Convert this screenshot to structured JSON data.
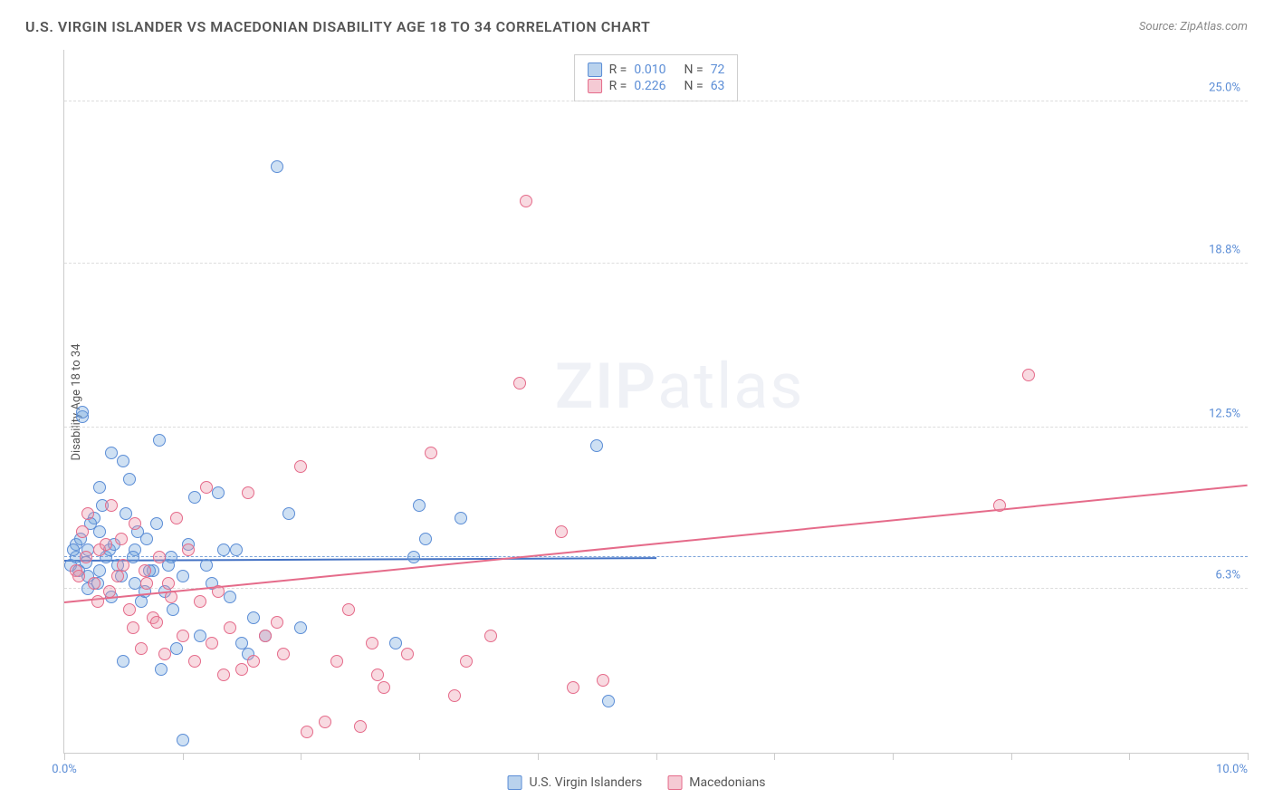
{
  "header": {
    "title": "U.S. VIRGIN ISLANDER VS MACEDONIAN DISABILITY AGE 18 TO 34 CORRELATION CHART",
    "source": "Source: ZipAtlas.com"
  },
  "chart": {
    "type": "scatter",
    "y_axis_label": "Disability Age 18 to 34",
    "background_color": "#ffffff",
    "grid_color": "#dddddd",
    "grid_dash": true,
    "xlim": [
      0.0,
      10.0
    ],
    "ylim": [
      0.0,
      27.0
    ],
    "x_ticks": [
      {
        "pos": 0.0,
        "label": "0.0%"
      },
      {
        "pos": 1.0,
        "label": ""
      },
      {
        "pos": 2.0,
        "label": ""
      },
      {
        "pos": 3.0,
        "label": ""
      },
      {
        "pos": 4.0,
        "label": ""
      },
      {
        "pos": 5.0,
        "label": ""
      },
      {
        "pos": 6.0,
        "label": ""
      },
      {
        "pos": 7.0,
        "label": ""
      },
      {
        "pos": 8.0,
        "label": ""
      },
      {
        "pos": 9.0,
        "label": ""
      },
      {
        "pos": 10.0,
        "label": "10.0%"
      }
    ],
    "y_ticks": [
      {
        "pos": 6.3,
        "label": "6.3%"
      },
      {
        "pos": 12.5,
        "label": "12.5%"
      },
      {
        "pos": 18.8,
        "label": "18.8%"
      },
      {
        "pos": 25.0,
        "label": "25.0%"
      }
    ],
    "reference_line_y": 7.5,
    "reference_line_color": "#7ba3d9",
    "series": [
      {
        "name": "U.S. Virgin Islanders",
        "color_fill": "rgba(115,165,220,0.35)",
        "color_stroke": "#5b8dd6",
        "trend_color": "#4472c4",
        "trend_x_range": [
          0.0,
          5.0
        ],
        "trend_y_range": [
          7.4,
          7.5
        ],
        "r_value": "0.010",
        "n_value": "72",
        "points": [
          [
            0.05,
            7.2
          ],
          [
            0.1,
            7.5
          ],
          [
            0.1,
            8.0
          ],
          [
            0.15,
            12.9
          ],
          [
            0.15,
            13.1
          ],
          [
            0.2,
            6.8
          ],
          [
            0.2,
            6.3
          ],
          [
            0.2,
            7.8
          ],
          [
            0.25,
            9.0
          ],
          [
            0.3,
            7.0
          ],
          [
            0.3,
            8.5
          ],
          [
            0.3,
            10.2
          ],
          [
            0.35,
            7.5
          ],
          [
            0.4,
            6.0
          ],
          [
            0.4,
            11.5
          ],
          [
            0.45,
            7.2
          ],
          [
            0.5,
            3.5
          ],
          [
            0.5,
            11.2
          ],
          [
            0.55,
            10.5
          ],
          [
            0.6,
            6.5
          ],
          [
            0.6,
            7.8
          ],
          [
            0.65,
            5.8
          ],
          [
            0.7,
            8.2
          ],
          [
            0.75,
            7.0
          ],
          [
            0.8,
            12.0
          ],
          [
            0.82,
            3.2
          ],
          [
            0.85,
            6.2
          ],
          [
            0.9,
            7.5
          ],
          [
            0.95,
            4.0
          ],
          [
            1.0,
            0.5
          ],
          [
            1.0,
            6.8
          ],
          [
            1.1,
            9.8
          ],
          [
            1.15,
            4.5
          ],
          [
            1.2,
            7.2
          ],
          [
            1.3,
            10.0
          ],
          [
            1.35,
            7.8
          ],
          [
            1.4,
            6.0
          ],
          [
            1.5,
            4.2
          ],
          [
            1.55,
            3.8
          ],
          [
            1.7,
            4.5
          ],
          [
            1.8,
            22.5
          ],
          [
            1.9,
            9.2
          ],
          [
            2.0,
            4.8
          ],
          [
            2.8,
            4.2
          ],
          [
            2.95,
            7.5
          ],
          [
            3.0,
            9.5
          ],
          [
            3.05,
            8.2
          ],
          [
            3.35,
            9.0
          ],
          [
            4.5,
            11.8
          ],
          [
            4.6,
            2.0
          ],
          [
            0.12,
            7.0
          ],
          [
            0.18,
            7.3
          ],
          [
            0.22,
            8.8
          ],
          [
            0.28,
            6.5
          ],
          [
            0.32,
            9.5
          ],
          [
            0.38,
            7.8
          ],
          [
            0.42,
            8.0
          ],
          [
            0.48,
            6.8
          ],
          [
            0.52,
            9.2
          ],
          [
            0.58,
            7.5
          ],
          [
            0.62,
            8.5
          ],
          [
            0.68,
            6.2
          ],
          [
            0.72,
            7.0
          ],
          [
            0.78,
            8.8
          ],
          [
            0.88,
            7.2
          ],
          [
            0.92,
            5.5
          ],
          [
            1.05,
            8.0
          ],
          [
            1.25,
            6.5
          ],
          [
            1.45,
            7.8
          ],
          [
            1.6,
            5.2
          ],
          [
            0.08,
            7.8
          ],
          [
            0.14,
            8.2
          ]
        ]
      },
      {
        "name": "Macedonians",
        "color_fill": "rgba(235,150,170,0.35)",
        "color_stroke": "#e56b8a",
        "trend_color": "#e56b8a",
        "trend_x_range": [
          0.0,
          10.0
        ],
        "trend_y_range": [
          5.8,
          10.3
        ],
        "r_value": "0.226",
        "n_value": "63",
        "points": [
          [
            0.1,
            7.0
          ],
          [
            0.15,
            8.5
          ],
          [
            0.2,
            9.2
          ],
          [
            0.25,
            6.5
          ],
          [
            0.3,
            7.8
          ],
          [
            0.35,
            8.0
          ],
          [
            0.4,
            9.5
          ],
          [
            0.45,
            6.8
          ],
          [
            0.5,
            7.2
          ],
          [
            0.55,
            5.5
          ],
          [
            0.6,
            8.8
          ],
          [
            0.65,
            4.0
          ],
          [
            0.7,
            6.5
          ],
          [
            0.75,
            5.2
          ],
          [
            0.8,
            7.5
          ],
          [
            0.85,
            3.8
          ],
          [
            0.9,
            6.0
          ],
          [
            0.95,
            9.0
          ],
          [
            1.0,
            4.5
          ],
          [
            1.05,
            7.8
          ],
          [
            1.1,
            3.5
          ],
          [
            1.15,
            5.8
          ],
          [
            1.2,
            10.2
          ],
          [
            1.25,
            4.2
          ],
          [
            1.3,
            6.2
          ],
          [
            1.35,
            3.0
          ],
          [
            1.4,
            4.8
          ],
          [
            1.5,
            3.2
          ],
          [
            1.55,
            10.0
          ],
          [
            1.6,
            3.5
          ],
          [
            1.7,
            4.5
          ],
          [
            1.8,
            5.0
          ],
          [
            1.85,
            3.8
          ],
          [
            2.0,
            11.0
          ],
          [
            2.05,
            0.8
          ],
          [
            2.2,
            1.2
          ],
          [
            2.3,
            3.5
          ],
          [
            2.4,
            5.5
          ],
          [
            2.5,
            1.0
          ],
          [
            2.6,
            4.2
          ],
          [
            2.65,
            3.0
          ],
          [
            2.7,
            2.5
          ],
          [
            2.9,
            3.8
          ],
          [
            3.1,
            11.5
          ],
          [
            3.3,
            2.2
          ],
          [
            3.4,
            3.5
          ],
          [
            3.6,
            4.5
          ],
          [
            3.85,
            14.2
          ],
          [
            3.9,
            21.2
          ],
          [
            4.2,
            8.5
          ],
          [
            4.3,
            2.5
          ],
          [
            4.55,
            2.8
          ],
          [
            7.9,
            9.5
          ],
          [
            8.15,
            14.5
          ],
          [
            0.12,
            6.8
          ],
          [
            0.18,
            7.5
          ],
          [
            0.28,
            5.8
          ],
          [
            0.38,
            6.2
          ],
          [
            0.48,
            8.2
          ],
          [
            0.58,
            4.8
          ],
          [
            0.68,
            7.0
          ],
          [
            0.78,
            5.0
          ],
          [
            0.88,
            6.5
          ]
        ]
      }
    ],
    "legend_top": {
      "rows": [
        {
          "swatch": "blue",
          "r_label": "R =",
          "r_val": "0.010",
          "n_label": "N =",
          "n_val": "72"
        },
        {
          "swatch": "pink",
          "r_label": "R =",
          "r_val": "0.226",
          "n_label": "N =",
          "n_val": "63"
        }
      ]
    },
    "legend_bottom": {
      "items": [
        {
          "swatch": "blue",
          "label": "U.S. Virgin Islanders"
        },
        {
          "swatch": "pink",
          "label": "Macedonians"
        }
      ]
    },
    "watermark": {
      "zip": "ZIP",
      "atlas": "atlas"
    },
    "axis_label_color": "#5b8dd6",
    "title_color": "#555555",
    "point_radius": 7
  }
}
